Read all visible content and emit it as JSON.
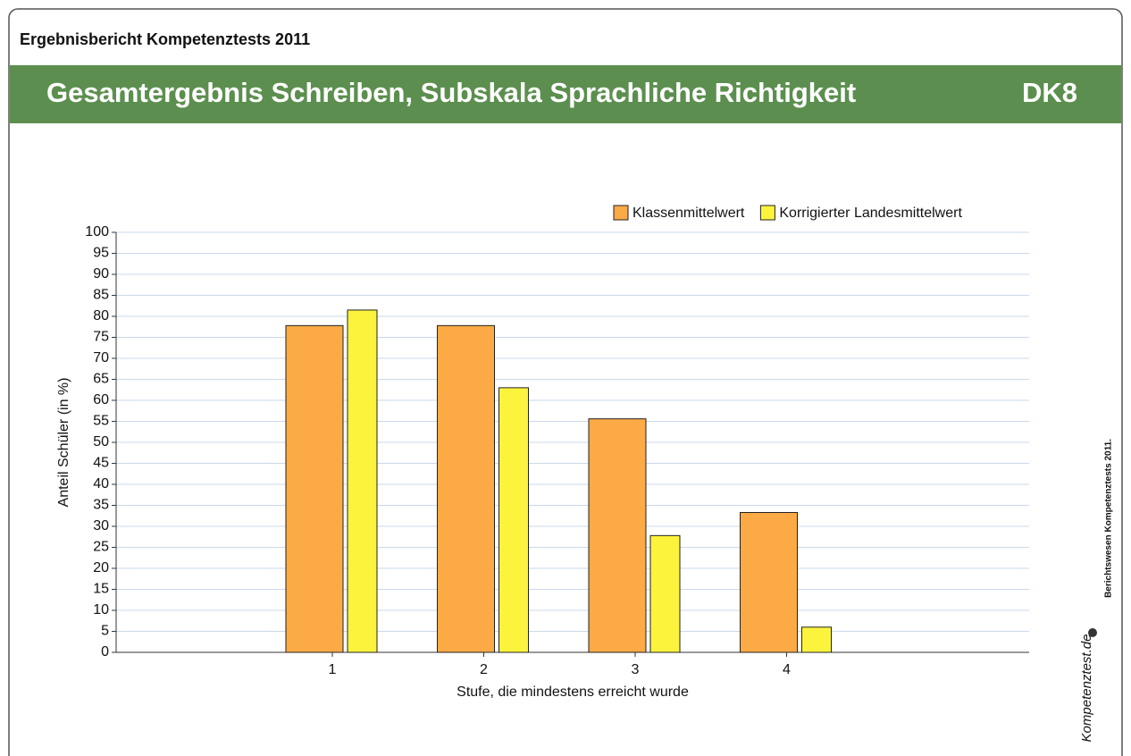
{
  "header": {
    "title": "Ergebnisbericht Kompetenztests 2011",
    "subtitle": "Gesamtergebnis Schreiben, Subskala Sprachliche Richtigkeit",
    "code": "DK8"
  },
  "side": {
    "note": "Berichtswesen Kompetenztests 2011.",
    "logo": "Kompetenztest.de"
  },
  "chart_data": {
    "type": "bar",
    "xlabel": "Stufe, die mindestens erreicht wurde",
    "ylabel": "Anteil Schüler (in %)",
    "categories": [
      "1",
      "2",
      "3",
      "4"
    ],
    "series": [
      {
        "name": "Klassenmittelwert",
        "color": "#fbaa46",
        "values": [
          77.8,
          77.8,
          55.6,
          33.3
        ]
      },
      {
        "name": "Korrigierter Landesmittelwert",
        "color": "#fcf43c",
        "values": [
          81.5,
          63.0,
          27.8,
          6.0
        ]
      }
    ],
    "ylim": [
      0,
      100
    ],
    "yticks": [
      0,
      5,
      10,
      15,
      20,
      25,
      30,
      35,
      40,
      45,
      50,
      55,
      60,
      65,
      70,
      75,
      80,
      85,
      90,
      95,
      100
    ],
    "grid": true,
    "legend": "top-right"
  }
}
